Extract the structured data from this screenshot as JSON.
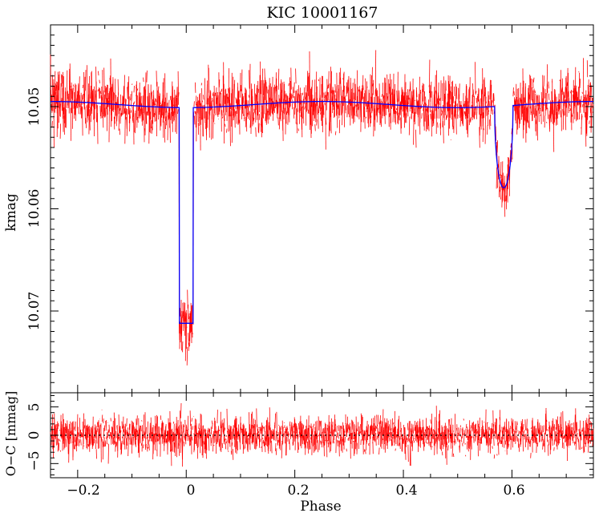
{
  "chart_data": [
    {
      "type": "scatter",
      "title": "KIC 10001167",
      "xlabel": "",
      "ylabel": "kmag",
      "xlim": [
        -0.25,
        0.75
      ],
      "ylim": [
        10.078,
        10.042
      ],
      "y_inverted": true,
      "yticks_labeled": [
        "10.05",
        "10.06",
        "10.07"
      ],
      "colors": {
        "data": "#ff0000",
        "model": "#0000ff"
      },
      "model": {
        "name": "",
        "baseline": 10.0498,
        "ellipsoidal_amplitude": 0.0003,
        "primary_eclipse": {
          "start": -0.013,
          "end": 0.013,
          "depth_mag": 10.0712
        },
        "secondary_eclipse": {
          "center": 0.585,
          "half_width": 0.017,
          "depth_mag": 10.0578
        }
      },
      "scatter_sigma_mag": 0.0015
    },
    {
      "type": "scatter",
      "title": "",
      "xlabel": "Phase",
      "ylabel": "O−C [mmag]",
      "xlim": [
        -0.25,
        0.75
      ],
      "ylim": [
        -7.5,
        7.5
      ],
      "xticks": [
        "−0.2",
        "0",
        "0.2",
        "0.4",
        "0.6"
      ],
      "yticks": [
        "−5",
        "0",
        "5"
      ],
      "colors": {
        "data": "#ff0000",
        "zero_line": "#000000"
      },
      "residual_sigma_mmag": 1.7
    }
  ]
}
